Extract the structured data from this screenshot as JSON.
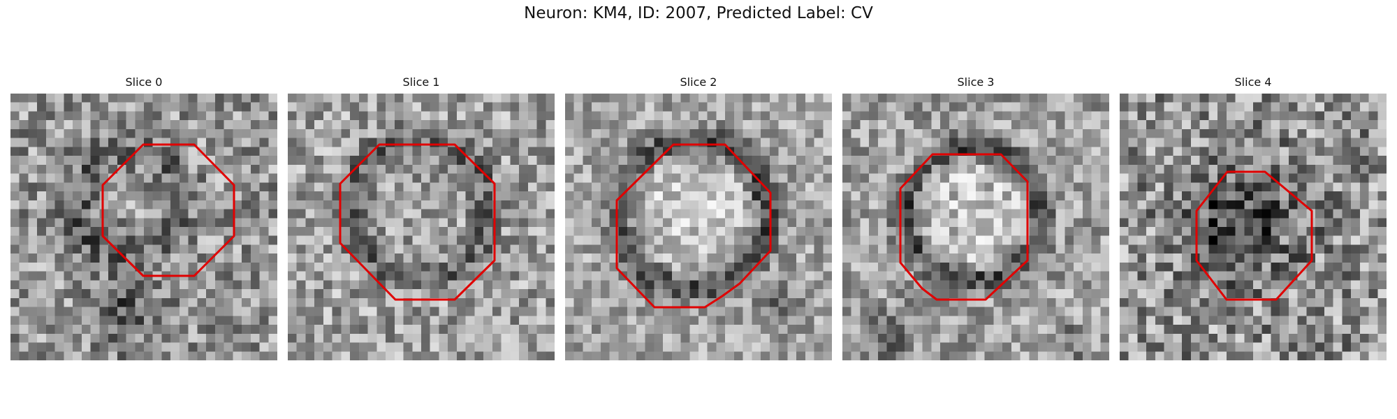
{
  "figure": {
    "title": "Neuron: KM4, ID: 2007, Predicted Label: CV"
  },
  "outline_color": "#e00000",
  "colormap": "grayscale",
  "panels": [
    {
      "title": "Slice 0",
      "contrast": "faint dark ring, low contrast"
    },
    {
      "title": "Slice 1",
      "contrast": "dark ring around mid-gray center"
    },
    {
      "title": "Slice 2",
      "contrast": "strong dark ring around bright center"
    },
    {
      "title": "Slice 3",
      "contrast": "dark ring around bright center"
    },
    {
      "title": "Slice 4",
      "contrast": "dark filled blob"
    }
  ]
}
